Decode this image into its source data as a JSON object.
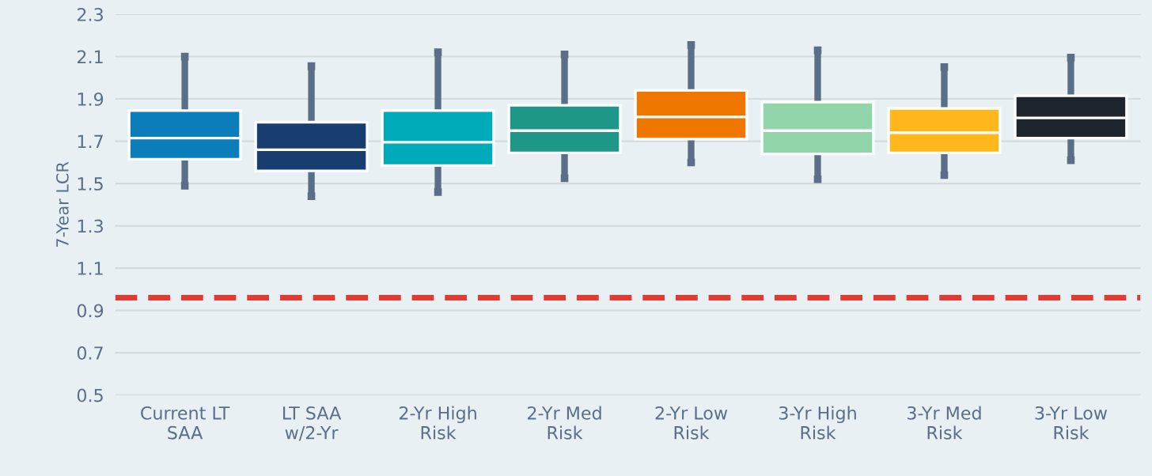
{
  "chart_data": {
    "type": "box",
    "ylabel": "7-Year LCR",
    "categories": [
      "Current LT SAA",
      "LT SAA w/2-Yr",
      "2-Yr High Risk",
      "2-Yr Med Risk",
      "2-Yr Low Risk",
      "3-Yr High Risk",
      "3-Yr Med Risk",
      "3-Yr Low Risk"
    ],
    "colors": [
      "#0a7dba",
      "#173e6e",
      "#00abb9",
      "#1e9788",
      "#ef7700",
      "#93d5aa",
      "#ffb71b",
      "#1e242c"
    ],
    "boxes": [
      {
        "low": 1.49,
        "q1": 1.615,
        "median": 1.715,
        "q3": 1.845,
        "high": 2.1
      },
      {
        "low": 1.44,
        "q1": 1.56,
        "median": 1.66,
        "q3": 1.79,
        "high": 2.055
      },
      {
        "low": 1.46,
        "q1": 1.585,
        "median": 1.695,
        "q3": 1.845,
        "high": 2.12
      },
      {
        "low": 1.525,
        "q1": 1.645,
        "median": 1.75,
        "q3": 1.87,
        "high": 2.11
      },
      {
        "low": 1.6,
        "q1": 1.71,
        "median": 1.815,
        "q3": 1.94,
        "high": 2.155
      },
      {
        "low": 1.52,
        "q1": 1.64,
        "median": 1.75,
        "q3": 1.885,
        "high": 2.13
      },
      {
        "low": 1.54,
        "q1": 1.645,
        "median": 1.74,
        "q3": 1.855,
        "high": 2.05
      },
      {
        "low": 1.61,
        "q1": 1.715,
        "median": 1.81,
        "q3": 1.915,
        "high": 2.095
      }
    ],
    "ylim": [
      0.5,
      2.3
    ],
    "yticks": [
      0.5,
      0.7,
      0.9,
      1.1,
      1.3,
      1.5,
      1.7,
      1.9,
      2.1,
      2.3
    ],
    "ref_lines": [
      {
        "axis": "y",
        "value": 0.96,
        "color": "#e8382f",
        "line_style": "dashed"
      }
    ],
    "grid": "y"
  }
}
